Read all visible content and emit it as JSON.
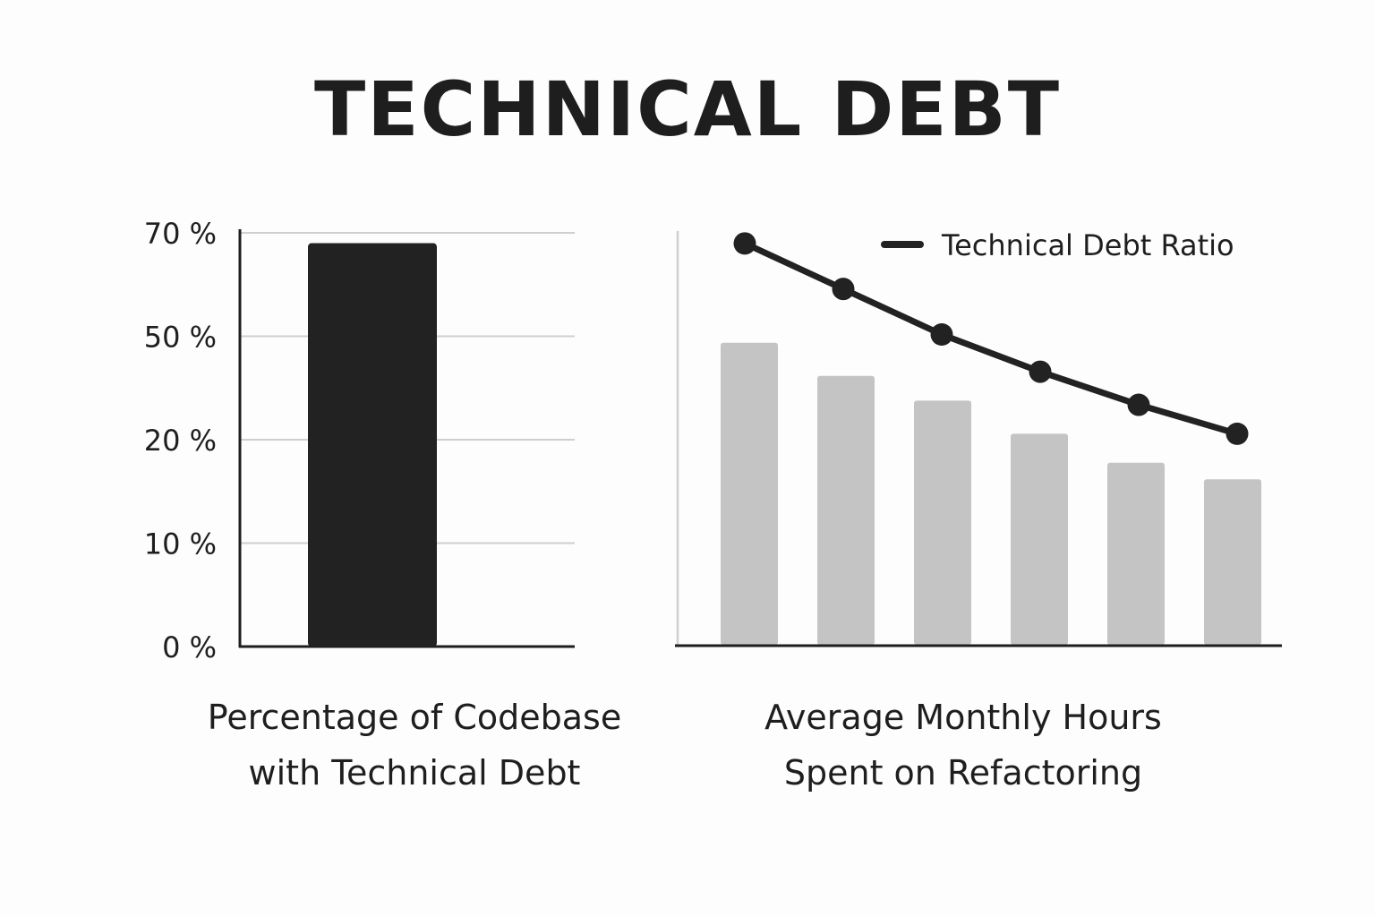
{
  "title": "TECHNICAL DEBT",
  "chart_data": [
    {
      "type": "bar",
      "caption_lines": [
        "Percentage of Codebase",
        "with Technical Debt"
      ],
      "y_ticks": [
        "0 %",
        "10 %",
        "20 %",
        "50 %",
        "70 %"
      ],
      "y_axis_scale": "categorical (ticks evenly spaced)",
      "categories": [
        ""
      ],
      "values": [
        "between 50 % and 70 % (about 90% of the way from 50 % to 70 %)"
      ],
      "value_tick_fraction": [
        3.9
      ],
      "bar_color": "#222222",
      "grid": true
    },
    {
      "type": "bar+line",
      "caption_lines": [
        "Average Monthly Hours",
        "Spent on Refactoring"
      ],
      "y_ticks": [],
      "x_ticks": [],
      "bar_values": [
        0.73,
        0.65,
        0.59,
        0.51,
        0.44,
        0.4
      ],
      "line_values": [
        0.97,
        0.86,
        0.75,
        0.66,
        0.58,
        0.51
      ],
      "value_units": "relative (no axis labels shown)",
      "series": [
        {
          "name": "Technical Debt Ratio",
          "kind": "line",
          "color": "#222222"
        },
        {
          "kind": "bar",
          "color": "#c4c4c4"
        }
      ],
      "legend_position": "top-right",
      "grid": false
    }
  ]
}
